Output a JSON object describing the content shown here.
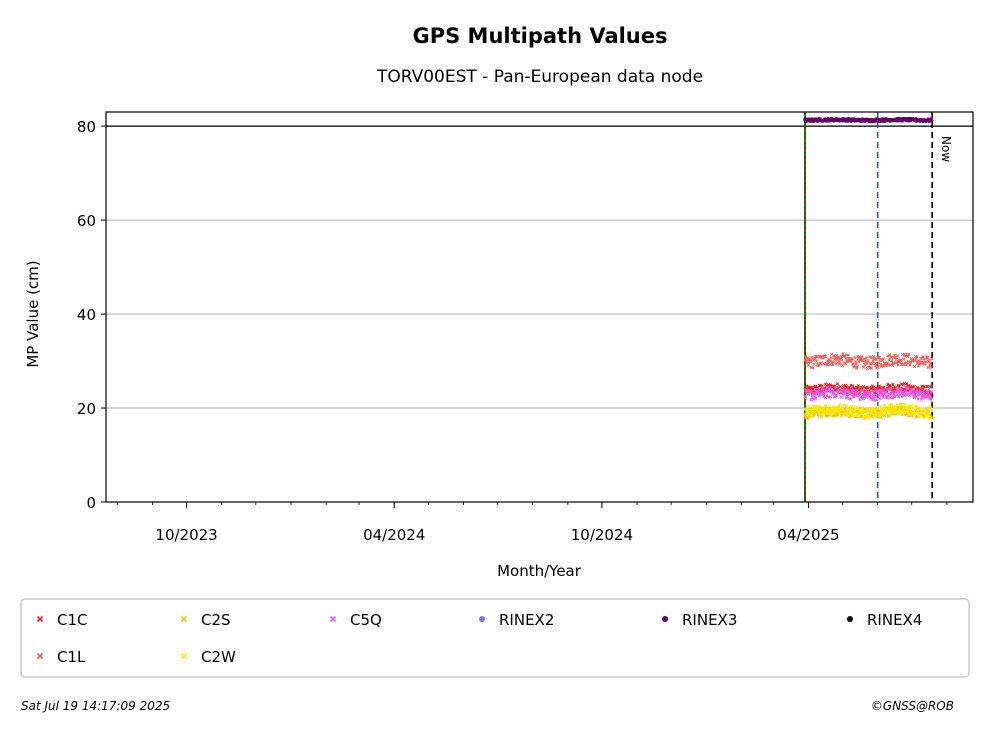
{
  "chart_data": {
    "type": "scatter",
    "title": "GPS Multipath Values",
    "subtitle": "TORV00EST - Pan-European data node",
    "xlabel": "Month/Year",
    "ylabel": "MP Value (cm)",
    "xlim": [
      "2023-07-22",
      "2025-08-24"
    ],
    "ylim": [
      0,
      83
    ],
    "yticks": [
      0,
      20,
      40,
      60,
      80
    ],
    "xticks": [
      {
        "date": "2023-10-01",
        "label": "10/2023"
      },
      {
        "date": "2024-04-01",
        "label": "04/2024"
      },
      {
        "date": "2024-10-01",
        "label": "10/2024"
      },
      {
        "date": "2025-04-01",
        "label": "04/2025"
      }
    ],
    "grid": "horizontal",
    "reference_line_y": 80,
    "vertical_lines": [
      {
        "date": "2025-03-29",
        "style": "solid",
        "color": "#008000"
      },
      {
        "date": "2025-03-29",
        "style": "dotted",
        "color": "#cc0000"
      },
      {
        "date": "2025-06-01",
        "style": "dashed",
        "color": "#1f5fbf"
      },
      {
        "date": "2025-07-19",
        "style": "dashed",
        "color": "#000000",
        "label": "Now"
      }
    ],
    "x_range_data": [
      "2025-03-29",
      "2025-07-18"
    ],
    "series": [
      {
        "name": "C1C",
        "color": "#e8231e",
        "marker": "x",
        "mean": 24,
        "spread": 0.6
      },
      {
        "name": "C1L",
        "color": "#f4615a",
        "marker": "x",
        "mean": 30,
        "spread": 0.8
      },
      {
        "name": "C2S",
        "color": "#f5c400",
        "marker": "x",
        "mean": 19,
        "spread": 0.6
      },
      {
        "name": "C2W",
        "color": "#ffe600",
        "marker": "x",
        "mean": 19.5,
        "spread": 0.7
      },
      {
        "name": "C5Q",
        "color": "#ee55ee",
        "marker": "x",
        "mean": 23,
        "spread": 0.7
      },
      {
        "name": "RINEX2",
        "color": "#7d7dc0",
        "marker": "o",
        "mean": null,
        "spread": 0
      },
      {
        "name": "RINEX3",
        "color": "#660066",
        "marker": "o",
        "mean": 81.3,
        "spread": 0.15
      },
      {
        "name": "RINEX4",
        "color": "#100010",
        "marker": "o",
        "mean": null,
        "spread": 0
      }
    ],
    "legend_placement": "bottom"
  },
  "legend": {
    "items": [
      "C1C",
      "C2S",
      "C5Q",
      "RINEX2",
      "RINEX3",
      "RINEX4",
      "C1L",
      "C2W"
    ]
  },
  "footer": {
    "timestamp": "Sat Jul 19 14:17:09 2025",
    "copyright": "©GNSS@ROB"
  },
  "now_label": "Now"
}
